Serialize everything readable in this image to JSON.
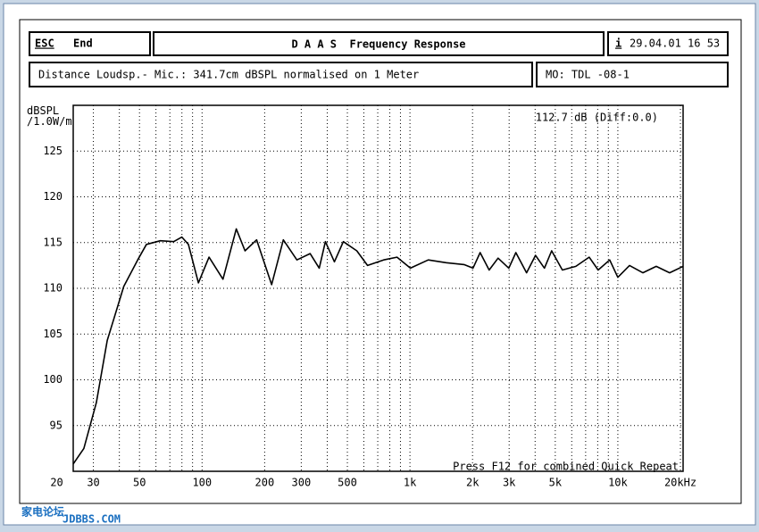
{
  "header": {
    "esc": "ESC",
    "end": "End",
    "title": "D A A S  Frequency Response",
    "info": "i",
    "datetime": "29.04.01 16 53",
    "description": "Distance Loudsp.- Mic.: 341.7cm dBSPL normalised on 1 Meter",
    "measurement": "MO: TDL -08-1"
  },
  "watermark": {
    "name": "家电论坛",
    "site": "JDBBS.COM"
  },
  "chart_data": {
    "type": "line",
    "ylabel": "dBSPL\n/1.0W/m",
    "annotation": "112.7 dB (Diff:0.0)",
    "footer_note": "Press F12 for combined Quick Repeat",
    "log_x": true,
    "grid": true,
    "xlim": [
      24,
      20600
    ],
    "ylim": [
      90,
      130
    ],
    "xticks": [
      20,
      30,
      50,
      100,
      200,
      300,
      500,
      {
        "value": 1000,
        "label": "1k"
      },
      {
        "value": 2000,
        "label": "2k"
      },
      {
        "value": 3000,
        "label": "3k"
      },
      {
        "value": 5000,
        "label": "5k"
      },
      {
        "value": 10000,
        "label": "10k"
      },
      {
        "value": 20000,
        "label": "20kHz"
      }
    ],
    "x_minor_gridlines": [
      40,
      60,
      70,
      80,
      90,
      400,
      600,
      700,
      800,
      900,
      4000,
      6000,
      7000,
      8000,
      9000
    ],
    "yticks": [
      95,
      100,
      105,
      110,
      115,
      120,
      125
    ],
    "x": [
      24,
      27,
      31,
      35,
      42,
      49,
      54,
      63,
      73,
      80,
      86,
      96,
      108,
      126,
      146,
      161,
      183,
      216,
      246,
      286,
      331,
      366,
      392,
      433,
      478,
      555,
      625,
      747,
      866,
      1005,
      1225,
      1493,
      1820,
      2010,
      2176,
      2403,
      2653,
      2987,
      3230,
      3640,
      4015,
      4433,
      4805,
      5410,
      6280,
      7280,
      8040,
      9140,
      10000,
      11380,
      13190,
      15300,
      17750,
      20600
    ],
    "series": [
      {
        "name": "TDL -08-1",
        "color": "#000000",
        "values": [
          90.8,
          92.5,
          97.5,
          104.3,
          110.2,
          113.1,
          114.8,
          115.2,
          115.1,
          115.6,
          114.8,
          110.6,
          113.4,
          111,
          116.5,
          114.1,
          115.3,
          110.4,
          115.3,
          113.1,
          113.8,
          112.2,
          115.1,
          112.9,
          115.1,
          114.1,
          112.5,
          113.1,
          113.4,
          112.2,
          113.1,
          112.8,
          112.6,
          112.2,
          113.9,
          112,
          113.3,
          112.2,
          113.9,
          111.7,
          113.6,
          112.2,
          114.1,
          112,
          112.4,
          113.4,
          112,
          113.1,
          111.2,
          112.5,
          111.7,
          112.4,
          111.7,
          112.4
        ]
      }
    ]
  }
}
